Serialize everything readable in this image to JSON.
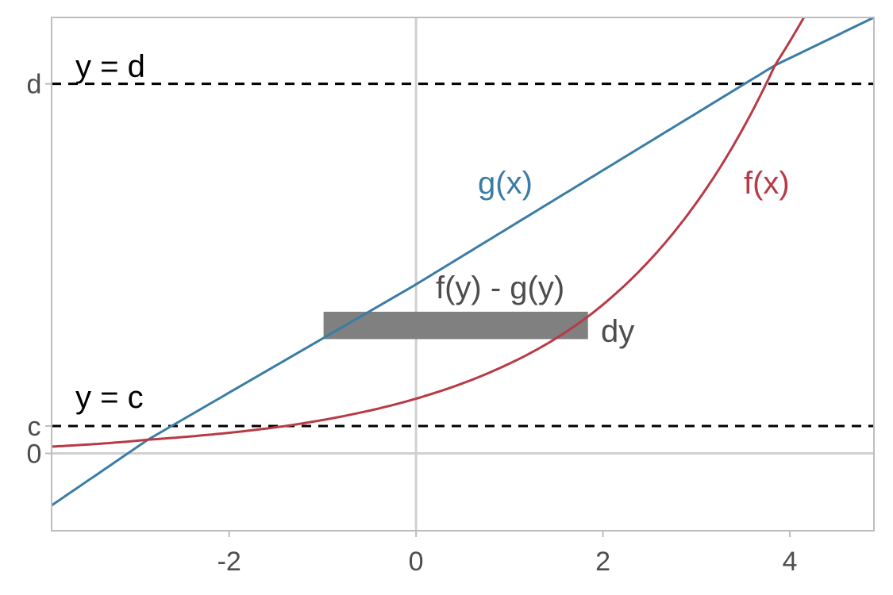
{
  "chart_data": {
    "type": "line",
    "title": "",
    "xlabel": "",
    "ylabel": "",
    "xlim": [
      -3.9,
      4.9
    ],
    "ylim": [
      -1.13,
      6.37
    ],
    "grid": false,
    "legend": "none",
    "x_ticks": [
      {
        "value": -2,
        "label": "-2"
      },
      {
        "value": 0,
        "label": "0"
      },
      {
        "value": 2,
        "label": "2"
      },
      {
        "value": 4,
        "label": "4"
      }
    ],
    "y_ticks": [
      {
        "value": 0,
        "label": "0"
      },
      {
        "value": 0.4,
        "label": "c"
      },
      {
        "value": 5.4,
        "label": "d"
      }
    ],
    "series": [
      {
        "name": "g(x)",
        "color": "#3a7ca5",
        "kind": "linear",
        "x": [
          -3.9,
          -2.87,
          0,
          3.84,
          4.9
        ],
        "y": [
          -0.76,
          0.2,
          2.47,
          5.67,
          6.37
        ]
      },
      {
        "name": "f(x)",
        "color": "#b83a46",
        "kind": "exponential",
        "x": [
          -3.9,
          -2.87,
          -1.4,
          0,
          1.4,
          1.84,
          2.8,
          3.84,
          4.15
        ],
        "y": [
          0.1,
          0.2,
          0.4,
          0.8,
          1.6,
          2.0,
          3.3,
          5.67,
          6.37
        ]
      }
    ],
    "reference_lines": [
      {
        "y": 5.4,
        "label": "y = d",
        "style": "dashed"
      },
      {
        "y": 0.4,
        "label": "y = c",
        "style": "dashed"
      }
    ],
    "shaded_strip": {
      "x_start": -0.99,
      "x_end": 1.84,
      "y_bottom": 1.67,
      "y_top": 2.07,
      "color": "#808080"
    },
    "annotations": {
      "g_label": "g(x)",
      "f_label": "f(x)",
      "difference_label": "f(y) - g(y)",
      "dy_label": "dy",
      "y_d_label": "y = d",
      "y_c_label": "y = c"
    }
  }
}
